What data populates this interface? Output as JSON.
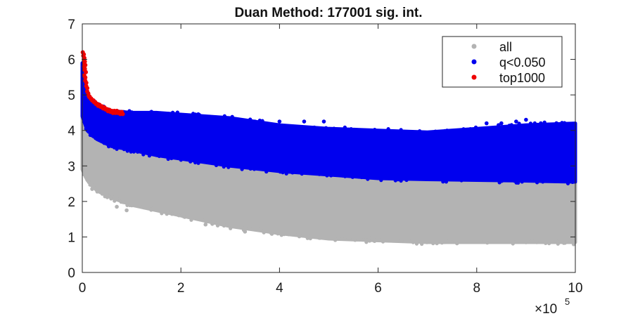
{
  "chart_data": {
    "type": "scatter",
    "title": "Duan Method: 177001 sig. int.",
    "xlabel": "",
    "ylabel": "",
    "xlim": [
      0,
      1000000
    ],
    "ylim": [
      0,
      7
    ],
    "x_ticks": [
      0,
      200000,
      400000,
      600000,
      800000,
      1000000
    ],
    "x_tick_labels": [
      "0",
      "2",
      "4",
      "6",
      "8",
      "10"
    ],
    "x_exponent_label": {
      "base": "×10",
      "exponent": "5"
    },
    "y_ticks": [
      0,
      1,
      2,
      3,
      4,
      5,
      6,
      7
    ],
    "y_tick_labels": [
      "0",
      "1",
      "2",
      "3",
      "4",
      "5",
      "6",
      "7"
    ],
    "grid": false,
    "legend_position": "top-right",
    "series": [
      {
        "name": "all",
        "color": "#b3b3b3",
        "envelope": {
          "x": [
            0,
            10000,
            30000,
            60000,
            100000,
            150000,
            200000,
            300000,
            400000,
            500000,
            600000,
            700000,
            800000,
            900000,
            1000000
          ],
          "upper": [
            5.6,
            4.4,
            4.0,
            3.75,
            3.55,
            3.4,
            3.25,
            3.0,
            2.8,
            2.7,
            2.62,
            2.58,
            2.56,
            2.54,
            2.52
          ],
          "lower": [
            2.9,
            2.6,
            2.3,
            2.1,
            1.9,
            1.75,
            1.6,
            1.3,
            1.1,
            0.95,
            0.9,
            0.85,
            0.85,
            0.85,
            0.85
          ]
        },
        "outliers": [
          [
            20000,
            2.35
          ],
          [
            70000,
            1.85
          ],
          [
            90000,
            1.75
          ],
          [
            250000,
            1.35
          ],
          [
            330000,
            1.15
          ],
          [
            560000,
            0.95
          ],
          [
            760000,
            0.82
          ],
          [
            900000,
            0.85
          ],
          [
            990000,
            0.88
          ]
        ]
      },
      {
        "name": "q<0.050",
        "color": "#0000ee",
        "envelope": {
          "x": [
            0,
            10000,
            30000,
            60000,
            100000,
            150000,
            200000,
            300000,
            400000,
            500000,
            600000,
            700000,
            800000,
            900000,
            1000000
          ],
          "upper": [
            5.9,
            5.0,
            4.7,
            4.55,
            4.5,
            4.5,
            4.45,
            4.35,
            4.15,
            4.05,
            4.0,
            3.95,
            4.05,
            4.15,
            4.2
          ],
          "lower": [
            4.4,
            4.0,
            3.75,
            3.55,
            3.45,
            3.3,
            3.2,
            3.0,
            2.85,
            2.75,
            2.65,
            2.62,
            2.6,
            2.58,
            2.55
          ]
        },
        "outliers": [
          [
            250000,
            4.3
          ],
          [
            300000,
            4.25
          ],
          [
            350000,
            4.25
          ],
          [
            400000,
            4.25
          ],
          [
            450000,
            4.25
          ],
          [
            490000,
            4.25
          ],
          [
            820000,
            4.2
          ],
          [
            850000,
            4.2
          ],
          [
            880000,
            4.25
          ],
          [
            900000,
            4.3
          ],
          [
            930000,
            4.2
          ],
          [
            180000,
            4.4
          ]
        ]
      },
      {
        "name": "top1000",
        "color": "#ee0000",
        "points": [
          [
            1000,
            6.2
          ],
          [
            2000,
            6.1
          ],
          [
            3000,
            6.0
          ],
          [
            4000,
            5.9
          ],
          [
            3000,
            5.8
          ],
          [
            5000,
            5.7
          ],
          [
            4000,
            5.55
          ],
          [
            6000,
            5.4
          ],
          [
            8000,
            5.25
          ],
          [
            10000,
            5.1
          ],
          [
            12000,
            5.0
          ],
          [
            15000,
            4.95
          ],
          [
            18000,
            4.9
          ],
          [
            22000,
            4.85
          ],
          [
            26000,
            4.8
          ],
          [
            30000,
            4.75
          ],
          [
            35000,
            4.72
          ],
          [
            40000,
            4.68
          ],
          [
            45000,
            4.65
          ],
          [
            50000,
            4.6
          ],
          [
            55000,
            4.58
          ],
          [
            60000,
            4.55
          ],
          [
            65000,
            4.55
          ],
          [
            70000,
            4.55
          ],
          [
            75000,
            4.52
          ],
          [
            80000,
            4.52
          ]
        ]
      }
    ]
  }
}
